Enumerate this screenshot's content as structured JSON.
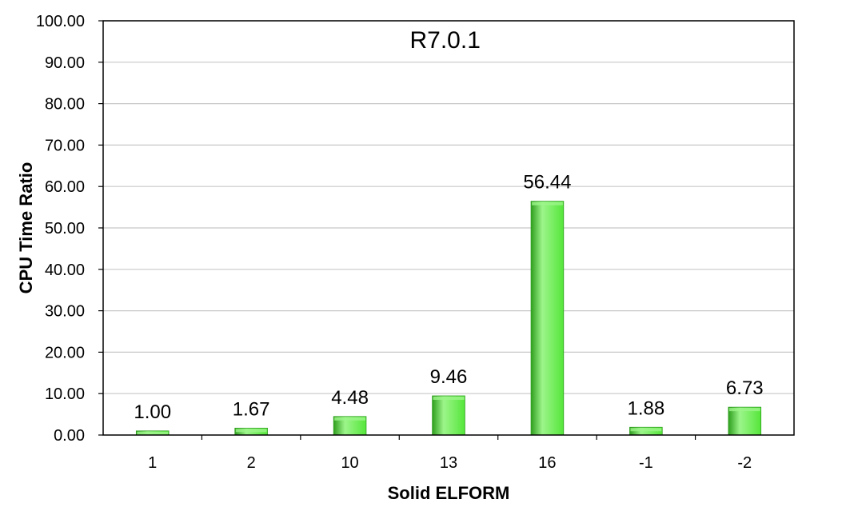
{
  "chart_data": {
    "type": "bar",
    "title": "R7.0.1",
    "xlabel": "Solid ELFORM",
    "ylabel": "CPU Time Ratio",
    "categories": [
      "1",
      "2",
      "10",
      "13",
      "16",
      "-1",
      "-2"
    ],
    "values": [
      1.0,
      1.67,
      4.48,
      9.46,
      56.44,
      1.88,
      6.73
    ],
    "value_labels": [
      "1.00",
      "1.67",
      "4.48",
      "9.46",
      "56.44",
      "1.88",
      "6.73"
    ],
    "ylim": [
      0,
      100
    ],
    "yticks": [
      "0.00",
      "10.00",
      "20.00",
      "30.00",
      "40.00",
      "50.00",
      "60.00",
      "70.00",
      "80.00",
      "90.00",
      "100.00"
    ],
    "grid": true,
    "legend": "none",
    "bar_color": "#55e63a",
    "bar_color_dark": "#2f9e1e",
    "bar_color_light": "#9cf58a",
    "gridline_color": "#c8c8c8"
  }
}
